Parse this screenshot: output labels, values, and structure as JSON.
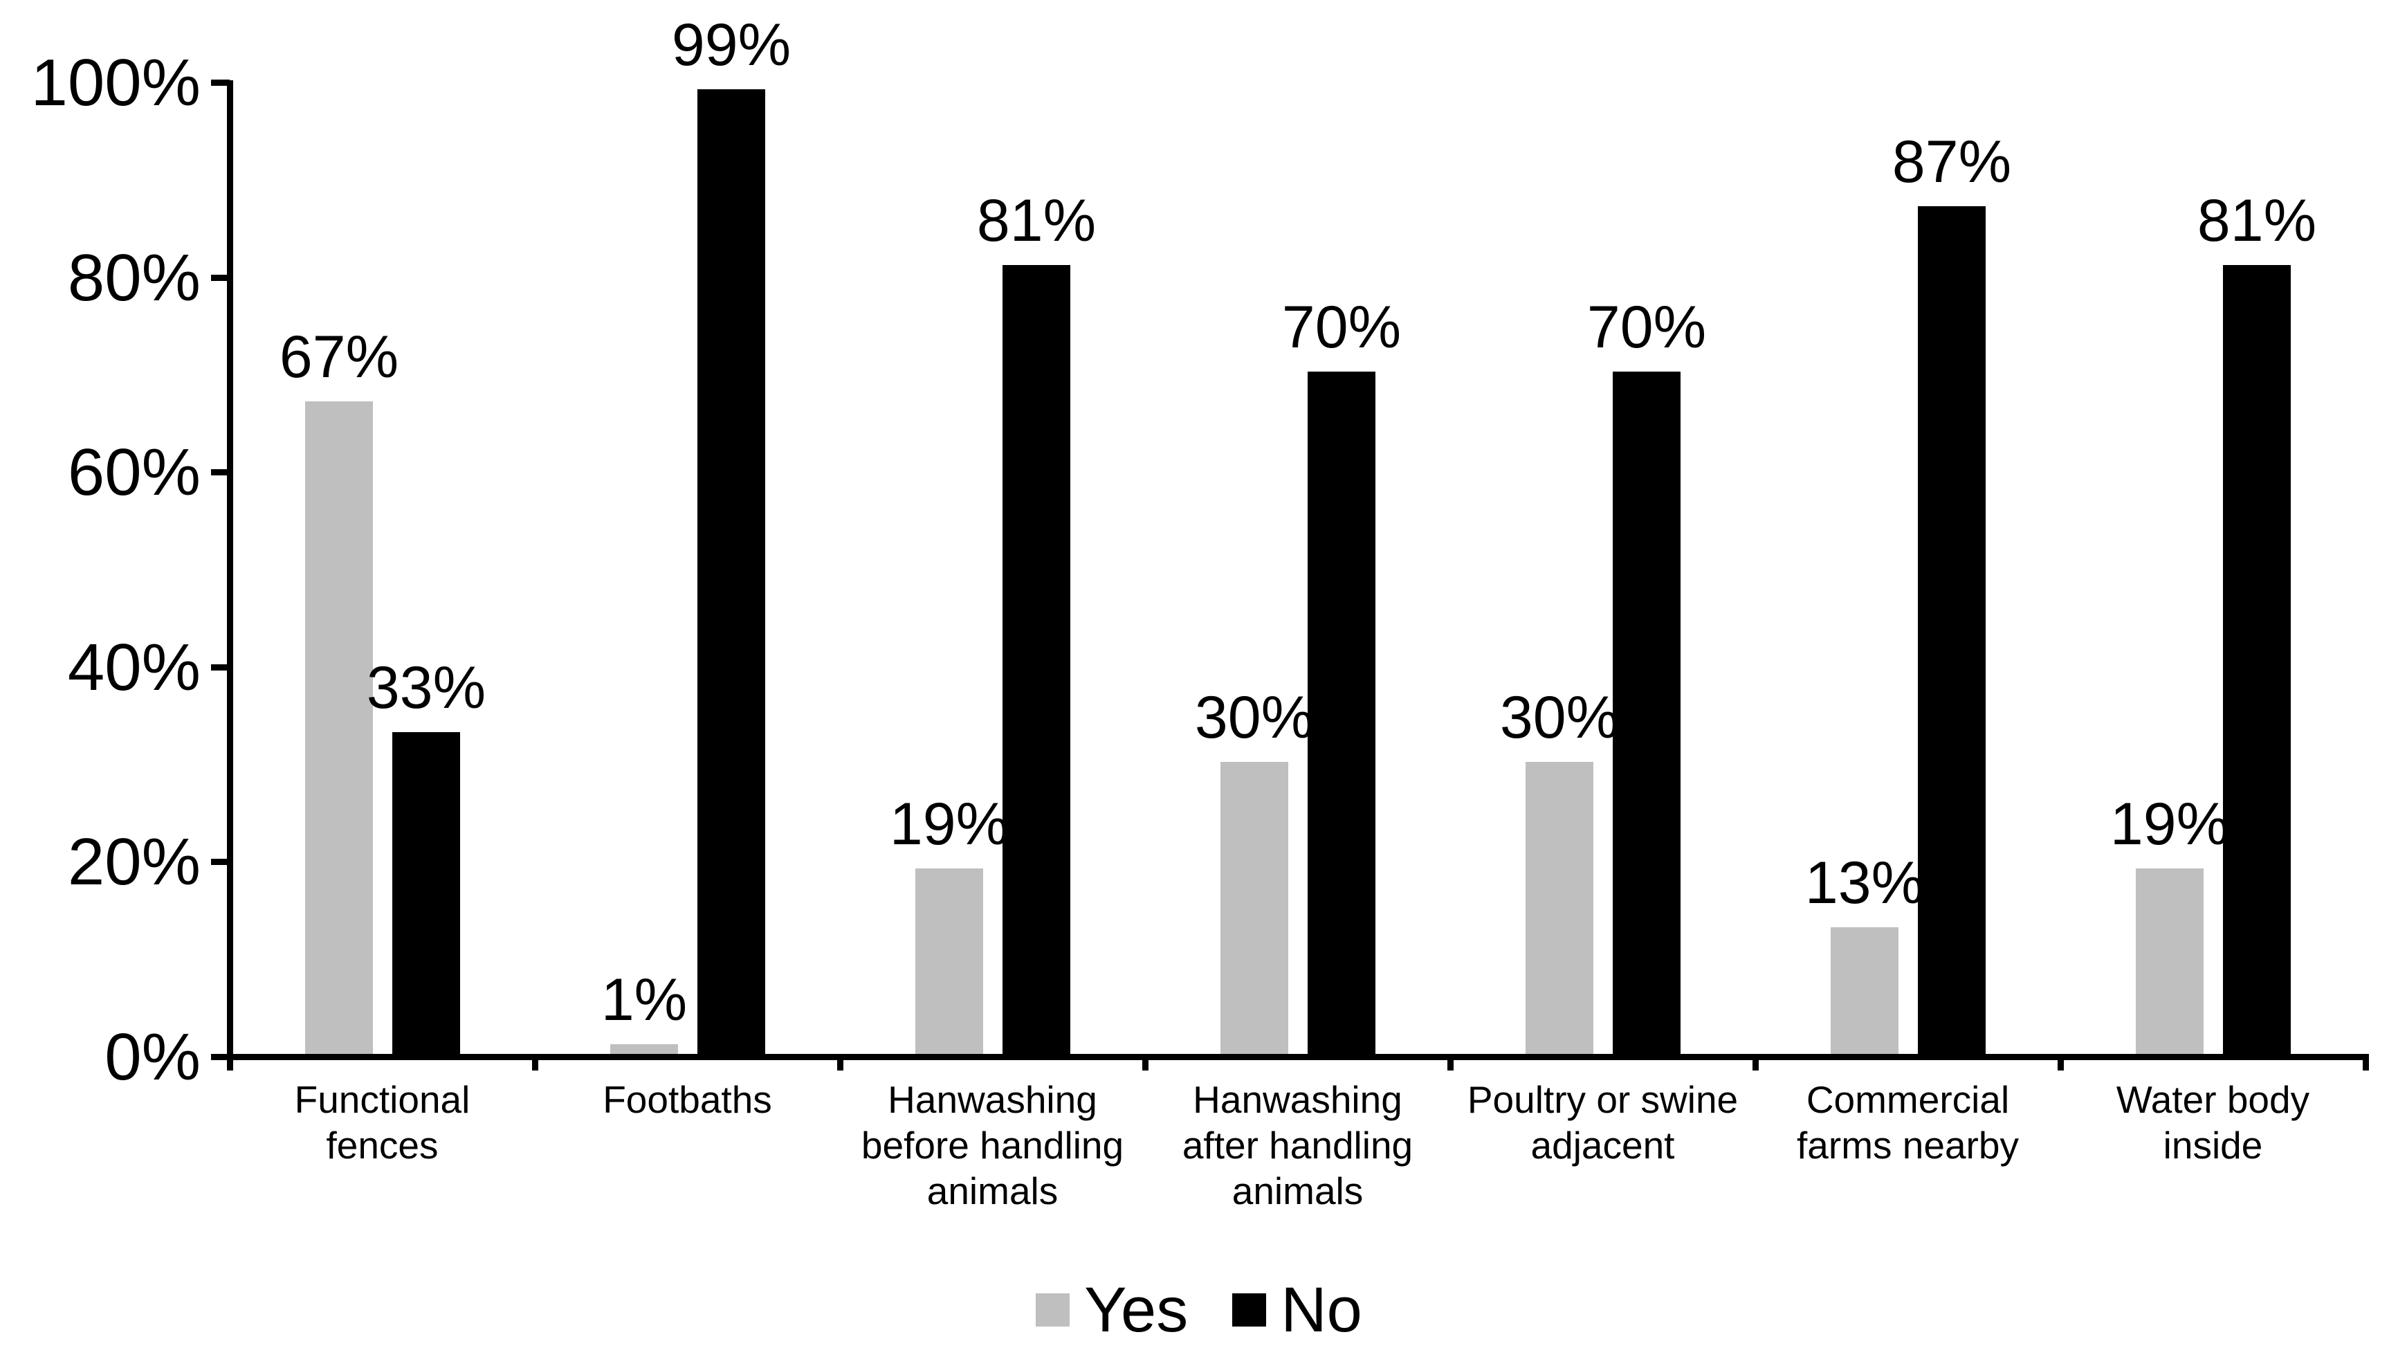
{
  "chart_data": {
    "type": "bar",
    "title": "",
    "xlabel": "",
    "ylabel": "",
    "categories": [
      [
        "Functional",
        "fences"
      ],
      [
        "Footbaths"
      ],
      [
        "Hanwashing",
        "before handling",
        "animals"
      ],
      [
        "Hanwashing",
        "after handling",
        "animals"
      ],
      [
        "Poultry or swine",
        "adjacent"
      ],
      [
        "Commercial",
        "farms nearby"
      ],
      [
        "Water body",
        "inside"
      ]
    ],
    "series": [
      {
        "name": "Yes",
        "color": "#bfbfbf",
        "values": [
          67,
          1,
          19,
          30,
          30,
          13,
          19
        ]
      },
      {
        "name": "No",
        "color": "#000000",
        "values": [
          33,
          99,
          81,
          70,
          70,
          87,
          81
        ]
      }
    ],
    "value_label_suffix": "%",
    "y_axis": {
      "min": 0,
      "max": 100,
      "tick_step": 20,
      "tick_labels": [
        "0%",
        "20%",
        "40%",
        "60%",
        "80%",
        "100%"
      ]
    },
    "legend_position": "bottom",
    "grid": false,
    "axis_color": "#000000",
    "background_color": "#ffffff"
  }
}
